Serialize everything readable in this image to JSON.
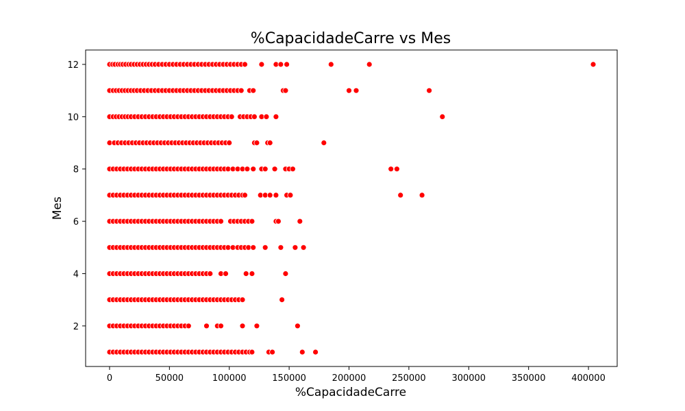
{
  "chart_data": {
    "type": "scatter",
    "title": "%CapacidadeCarre vs Mes",
    "xlabel": "%CapacidadeCarre",
    "ylabel": "Mes",
    "xlim": [
      -20000,
      424000
    ],
    "ylim": [
      0.45,
      12.55
    ],
    "xticks": [
      0,
      50000,
      100000,
      150000,
      200000,
      250000,
      300000,
      350000,
      400000
    ],
    "yticks": [
      2,
      4,
      6,
      8,
      10,
      12
    ],
    "grid": false,
    "legend": "none",
    "marker_color": "#ff0000",
    "marker_edge_color": "#ffffff",
    "series": [
      {
        "points": [
          {
            "y": 12,
            "x": [
              0,
              2500,
              4500,
              7000,
              9000,
              11000,
              13500,
              16000,
              18000,
              20500,
              23000,
              25500,
              28000,
              30500,
              33000,
              35500,
              38000,
              41000,
              44000,
              47000,
              50000,
              53000,
              56000,
              59000,
              62000,
              65000,
              68000,
              71000,
              74000,
              77000,
              80000,
              83000,
              86000,
              89000,
              92000,
              95000,
              98000,
              101000,
              104000,
              107000,
              110000,
              113000,
              127000,
              139000,
              143000,
              148000,
              185000,
              217000,
              404000
            ]
          },
          {
            "y": 11,
            "x": [
              0,
              3000,
              5500,
              8000,
              10500,
              13000,
              15500,
              18000,
              20500,
              23000,
              26000,
              29000,
              32000,
              35000,
              38000,
              41000,
              44000,
              47000,
              50000,
              53000,
              56000,
              59000,
              62000,
              65000,
              68000,
              71000,
              74000,
              77000,
              80000,
              83000,
              86000,
              89000,
              92000,
              95000,
              98000,
              101000,
              104000,
              107000,
              110000,
              117000,
              120000,
              145000,
              147000,
              200000,
              206000,
              267000
            ]
          },
          {
            "y": 10,
            "x": [
              0,
              3000,
              5500,
              8000,
              10500,
              13000,
              15500,
              18000,
              21000,
              24000,
              27000,
              30000,
              33000,
              36000,
              39000,
              42000,
              45000,
              48000,
              51000,
              54000,
              57000,
              60000,
              63000,
              66000,
              69000,
              72000,
              75000,
              78000,
              81000,
              84000,
              87000,
              90000,
              93000,
              96000,
              99000,
              102000,
              109000,
              112000,
              115000,
              118000,
              121000,
              127000,
              131000,
              139000,
              278000
            ]
          },
          {
            "y": 9,
            "x": [
              0,
              4000,
              7000,
              10000,
              13000,
              16000,
              19000,
              22000,
              25000,
              28000,
              31000,
              34000,
              37000,
              40000,
              43000,
              46000,
              49000,
              52000,
              55000,
              58000,
              61000,
              64000,
              67000,
              70000,
              73000,
              76000,
              79000,
              82000,
              85000,
              88000,
              91000,
              94000,
              97000,
              100000,
              121000,
              123000,
              132000,
              134000,
              179000
            ]
          },
          {
            "y": 8,
            "x": [
              0,
              3000,
              6000,
              9000,
              12000,
              15000,
              18000,
              21000,
              24000,
              27000,
              30000,
              33000,
              36000,
              39000,
              42000,
              45000,
              48000,
              51000,
              54000,
              57000,
              60000,
              63000,
              66000,
              69000,
              72000,
              75000,
              78000,
              81000,
              84000,
              87000,
              90000,
              93000,
              96000,
              99000,
              103000,
              107000,
              111000,
              115000,
              120000,
              127000,
              130000,
              138000,
              147000,
              150000,
              153000,
              235000,
              240000
            ]
          },
          {
            "y": 7,
            "x": [
              0,
              3000,
              6000,
              9000,
              12000,
              15000,
              18000,
              21000,
              24000,
              27000,
              30000,
              33000,
              36000,
              39000,
              42000,
              45000,
              48000,
              51000,
              54000,
              57000,
              60000,
              63000,
              66000,
              69000,
              72000,
              75000,
              78000,
              81000,
              84000,
              87000,
              90000,
              93000,
              96000,
              99000,
              102000,
              105000,
              108000,
              111000,
              113000,
              126000,
              130000,
              134000,
              139000,
              148000,
              151000,
              243000,
              261000
            ]
          },
          {
            "y": 6,
            "x": [
              0,
              3000,
              6000,
              9000,
              12000,
              15000,
              18000,
              21000,
              24000,
              27000,
              30000,
              33000,
              36000,
              39000,
              42000,
              45000,
              48000,
              51000,
              54000,
              57000,
              60000,
              63000,
              66000,
              69000,
              72000,
              75000,
              78000,
              81000,
              84000,
              87000,
              90000,
              93000,
              101000,
              104000,
              107000,
              110000,
              113000,
              116000,
              119000,
              139000,
              141000,
              159000
            ]
          },
          {
            "y": 5,
            "x": [
              0,
              3000,
              6000,
              9000,
              12000,
              15000,
              18000,
              21000,
              24000,
              27000,
              30000,
              33000,
              36000,
              39000,
              42000,
              45000,
              48000,
              51000,
              54000,
              57000,
              60000,
              63000,
              66000,
              69000,
              72000,
              75000,
              78000,
              81000,
              84000,
              87000,
              90000,
              93000,
              96000,
              99000,
              103000,
              107000,
              110000,
              113000,
              116000,
              120000,
              130000,
              143000,
              155000,
              162000
            ]
          },
          {
            "y": 4,
            "x": [
              0,
              3000,
              6000,
              9000,
              12000,
              15000,
              18000,
              21000,
              24000,
              27000,
              30000,
              33000,
              36000,
              39000,
              42000,
              45000,
              48000,
              51000,
              54000,
              57000,
              60000,
              63000,
              66000,
              69000,
              72000,
              75000,
              78000,
              81000,
              84000,
              93000,
              97000,
              114000,
              119000,
              147000
            ]
          },
          {
            "y": 3,
            "x": [
              0,
              3000,
              6000,
              9000,
              12000,
              15000,
              18000,
              21000,
              24000,
              27000,
              30000,
              33000,
              36000,
              39000,
              42000,
              45000,
              48000,
              51000,
              54000,
              57000,
              60000,
              63000,
              66000,
              69000,
              72000,
              75000,
              78000,
              81000,
              84000,
              87000,
              90000,
              93000,
              96000,
              99000,
              102000,
              105000,
              108000,
              111000,
              144000
            ]
          },
          {
            "y": 2,
            "x": [
              0,
              3000,
              6000,
              9000,
              12000,
              15000,
              18000,
              21000,
              24000,
              27000,
              30000,
              33000,
              36000,
              39000,
              42000,
              45000,
              48000,
              51000,
              54000,
              57000,
              60000,
              63000,
              66000,
              81000,
              90000,
              93000,
              111000,
              123000,
              157000
            ]
          },
          {
            "y": 1,
            "x": [
              0,
              3000,
              6000,
              9000,
              12000,
              15000,
              18000,
              21000,
              24000,
              27000,
              30000,
              33000,
              36000,
              39000,
              42000,
              45000,
              48000,
              51000,
              54000,
              57000,
              60000,
              63000,
              66000,
              69000,
              72000,
              75000,
              78000,
              81000,
              84000,
              87000,
              90000,
              93000,
              96000,
              99000,
              102000,
              105000,
              108000,
              111000,
              114000,
              117000,
              119000,
              133000,
              136000,
              161000,
              172000
            ]
          }
        ]
      }
    ]
  }
}
